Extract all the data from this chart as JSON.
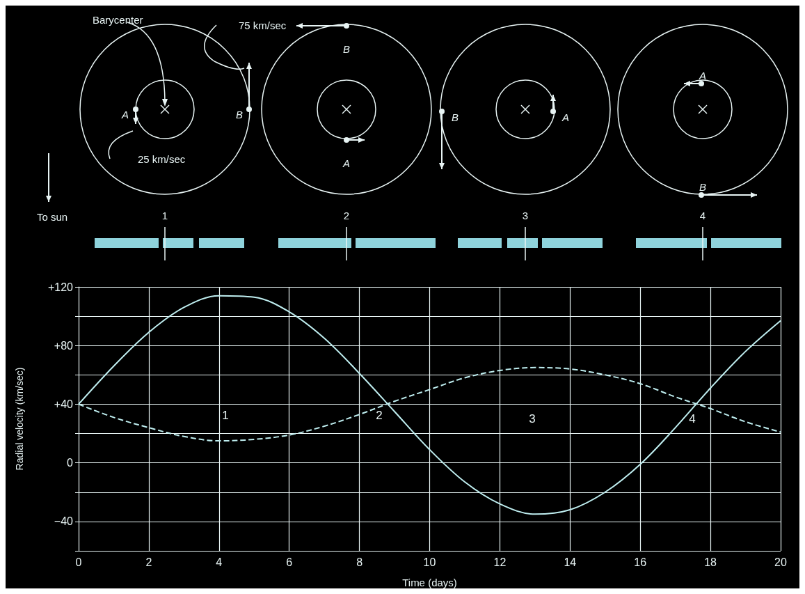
{
  "chart_data": {
    "type": "line",
    "xlabel": "Time (days)",
    "ylabel": "Radial velocity (km/sec)",
    "x": [
      0,
      1,
      2,
      3,
      4,
      5,
      6,
      7,
      8,
      9,
      10,
      11,
      12,
      13,
      14,
      15,
      16,
      17,
      18,
      19,
      20
    ],
    "series": [
      {
        "color": "#bfeef0",
        "line_style": "solid",
        "values": [
          40,
          66,
          89,
          106,
          114,
          113,
          103,
          85,
          61,
          35,
          9,
          -13,
          -28,
          -35,
          -32,
          -20,
          -1,
          24,
          51,
          76,
          97
        ]
      },
      {
        "color": "#bfeef0",
        "line_style": "dashed",
        "values": [
          40,
          31,
          24,
          18,
          15,
          16,
          19,
          25,
          33,
          42,
          50,
          58,
          63,
          65,
          64,
          60,
          54,
          45,
          37,
          28,
          21
        ]
      }
    ],
    "xlim": [
      0,
      20
    ],
    "xticks": [
      0,
      2,
      4,
      6,
      8,
      10,
      12,
      14,
      16,
      18,
      20
    ],
    "ylim": [
      -60,
      120
    ],
    "yticks": [
      {
        "value": -60,
        "label": null
      },
      {
        "value": -40,
        "label": "−40"
      },
      {
        "value": -20,
        "label": null
      },
      0,
      {
        "value": 20,
        "label": null
      },
      {
        "value": 40,
        "label": "+40"
      },
      {
        "value": 60,
        "label": null
      },
      {
        "value": 80,
        "label": "+80"
      },
      {
        "value": 100,
        "label": null
      },
      {
        "value": 120,
        "label": "+120"
      }
    ],
    "grid": true,
    "marker": "none",
    "annotations": [
      "Barycenter",
      "75 km/sec",
      "25 km/sec",
      "To sun",
      "A",
      "B",
      "1",
      "B",
      "A",
      "2",
      "B",
      "A",
      "3",
      "A",
      "B",
      "4",
      "1",
      "2",
      "3",
      "4"
    ]
  }
}
